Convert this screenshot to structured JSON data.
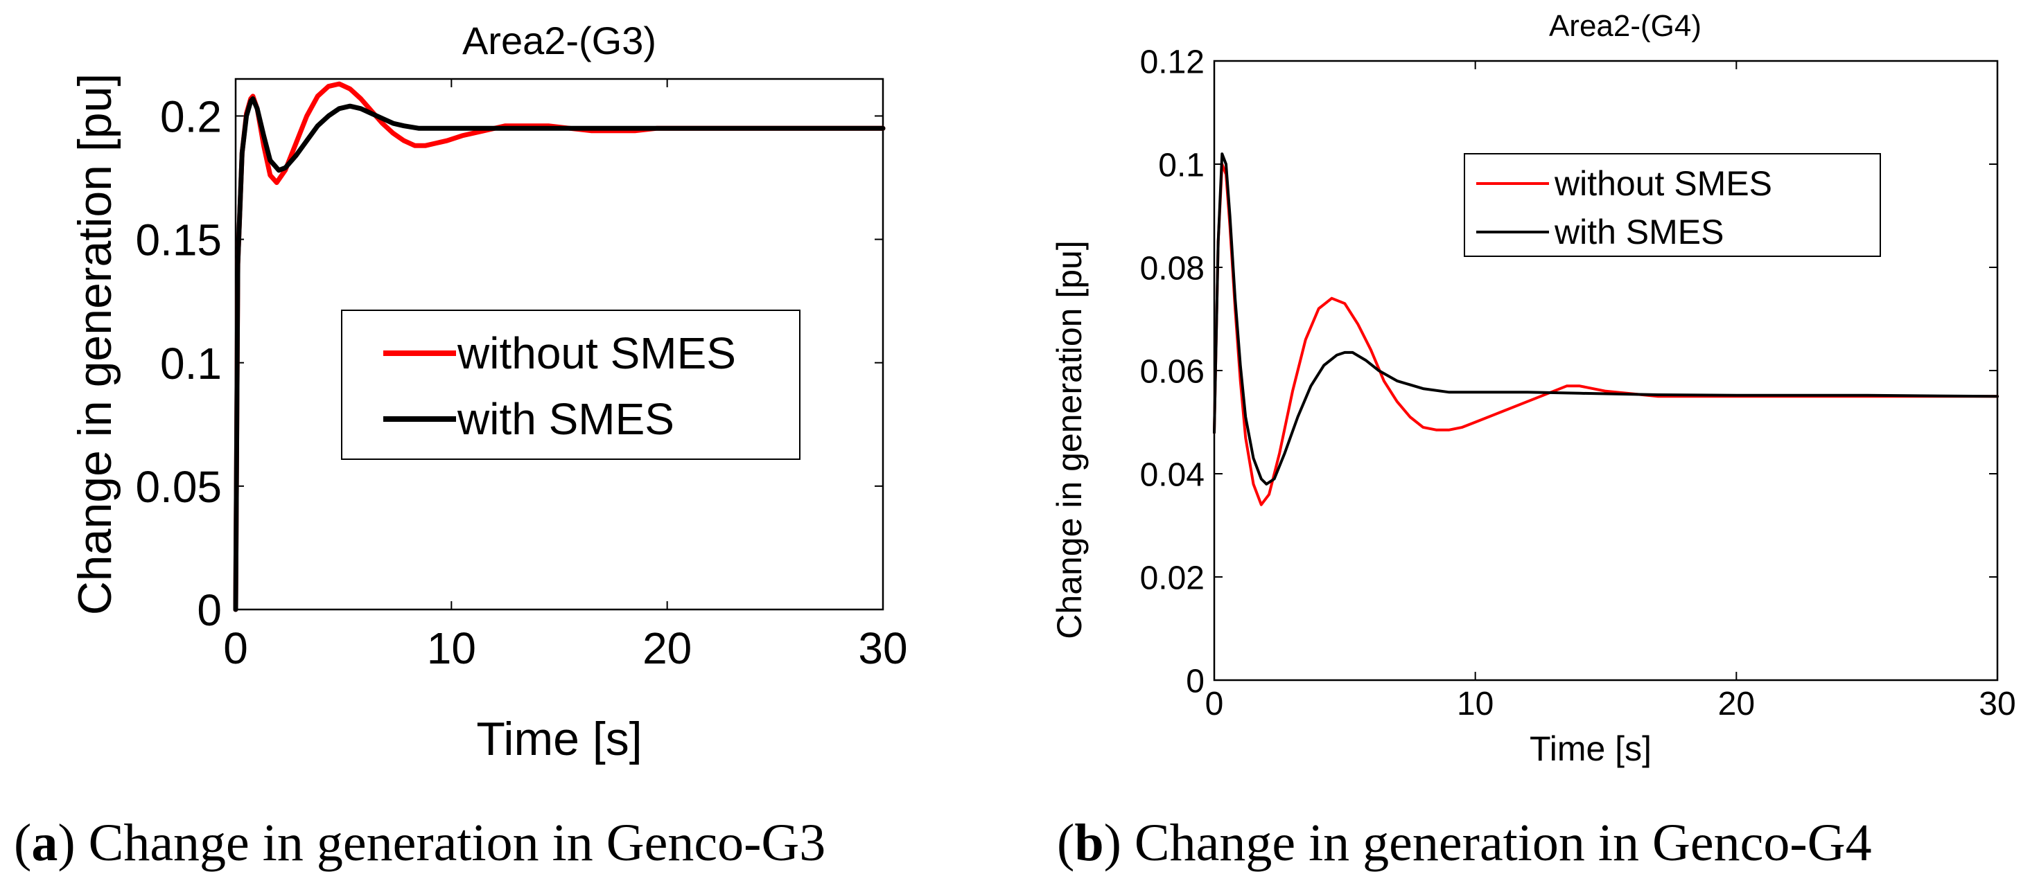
{
  "chart_data": [
    {
      "type": "line",
      "title": "Area2-(G3)",
      "xlabel": "Time [s]",
      "ylabel": "Change in generation [pu]",
      "xlim": [
        0,
        30
      ],
      "ylim": [
        0,
        0.215
      ],
      "xticks": [
        0,
        10,
        20,
        30
      ],
      "xtick_labels": [
        "0",
        "10",
        "20",
        "30"
      ],
      "yticks": [
        0,
        0.05,
        0.1,
        0.15,
        0.2
      ],
      "ytick_labels": [
        "0",
        "0.05",
        "0.1",
        "0.15",
        "0.2"
      ],
      "legend_position": "center",
      "series": [
        {
          "name": "without SMES",
          "color": "#ff0000",
          "x": [
            0,
            0.1,
            0.3,
            0.5,
            0.7,
            0.8,
            1.0,
            1.3,
            1.6,
            1.9,
            2.3,
            2.8,
            3.3,
            3.8,
            4.3,
            4.8,
            5.3,
            5.8,
            6.3,
            6.8,
            7.3,
            7.8,
            8.3,
            8.8,
            9.3,
            9.8,
            10.5,
            11.5,
            12.5,
            13.5,
            14.5,
            15.5,
            16.5,
            17.5,
            18.5,
            19.5,
            21,
            23,
            26,
            30
          ],
          "y": [
            0,
            0.14,
            0.185,
            0.201,
            0.207,
            0.208,
            0.203,
            0.188,
            0.176,
            0.173,
            0.178,
            0.189,
            0.2,
            0.208,
            0.212,
            0.213,
            0.211,
            0.207,
            0.202,
            0.197,
            0.193,
            0.19,
            0.188,
            0.188,
            0.189,
            0.19,
            0.192,
            0.194,
            0.196,
            0.196,
            0.196,
            0.195,
            0.194,
            0.194,
            0.194,
            0.195,
            0.195,
            0.195,
            0.195,
            0.195
          ]
        },
        {
          "name": "with SMES",
          "color": "#000000",
          "x": [
            0,
            0.1,
            0.3,
            0.5,
            0.7,
            0.8,
            1.0,
            1.3,
            1.6,
            2.0,
            2.3,
            2.8,
            3.3,
            3.8,
            4.3,
            4.8,
            5.3,
            5.8,
            6.3,
            6.8,
            7.3,
            7.8,
            8.5,
            9.5,
            10.5,
            11.5,
            12.5,
            14,
            16,
            18,
            20,
            23,
            26,
            30
          ],
          "y": [
            0,
            0.14,
            0.185,
            0.2,
            0.206,
            0.207,
            0.203,
            0.192,
            0.182,
            0.178,
            0.179,
            0.184,
            0.19,
            0.196,
            0.2,
            0.203,
            0.204,
            0.203,
            0.201,
            0.199,
            0.197,
            0.196,
            0.195,
            0.195,
            0.195,
            0.195,
            0.195,
            0.195,
            0.195,
            0.195,
            0.195,
            0.195,
            0.195,
            0.195
          ]
        }
      ]
    },
    {
      "type": "line",
      "title": "Area2-(G4)",
      "xlabel": "Time [s]",
      "ylabel": "Change in generation [pu]",
      "xlim": [
        0,
        30
      ],
      "ylim": [
        0,
        0.12
      ],
      "xticks": [
        0,
        10,
        20,
        30
      ],
      "xtick_labels": [
        "0",
        "10",
        "20",
        "30"
      ],
      "yticks": [
        0,
        0.02,
        0.04,
        0.06,
        0.08,
        0.1,
        0.12
      ],
      "ytick_labels": [
        "0",
        "0.02",
        "0.04",
        "0.06",
        "0.08",
        "0.1",
        "0.12"
      ],
      "legend_position": "top-right",
      "series": [
        {
          "name": "without SMES",
          "color": "#ff0000",
          "x": [
            0,
            0.15,
            0.3,
            0.45,
            0.6,
            0.8,
            1.0,
            1.2,
            1.5,
            1.8,
            2.1,
            2.5,
            3.0,
            3.5,
            4.0,
            4.5,
            5.0,
            5.5,
            6.0,
            6.5,
            7.0,
            7.5,
            8.0,
            8.5,
            9.0,
            9.5,
            10,
            11,
            12,
            13,
            13.5,
            14,
            15,
            16,
            17,
            18,
            20,
            23,
            26,
            30
          ],
          "y": [
            0.048,
            0.085,
            0.1,
            0.098,
            0.088,
            0.072,
            0.058,
            0.047,
            0.038,
            0.034,
            0.036,
            0.044,
            0.056,
            0.066,
            0.072,
            0.074,
            0.073,
            0.069,
            0.064,
            0.058,
            0.054,
            0.051,
            0.049,
            0.0485,
            0.0485,
            0.049,
            0.05,
            0.052,
            0.054,
            0.056,
            0.057,
            0.057,
            0.056,
            0.0555,
            0.055,
            0.055,
            0.055,
            0.055,
            0.055,
            0.055
          ]
        },
        {
          "name": "with SMES",
          "color": "#000000",
          "x": [
            0,
            0.15,
            0.3,
            0.45,
            0.6,
            0.8,
            1.0,
            1.2,
            1.5,
            1.8,
            2.0,
            2.3,
            2.7,
            3.2,
            3.7,
            4.2,
            4.7,
            5.0,
            5.3,
            5.8,
            6.3,
            7,
            8,
            9,
            10,
            12,
            14,
            17,
            20,
            25,
            30
          ],
          "y": [
            0.048,
            0.085,
            0.102,
            0.1,
            0.09,
            0.074,
            0.061,
            0.051,
            0.043,
            0.039,
            0.038,
            0.039,
            0.044,
            0.051,
            0.057,
            0.061,
            0.063,
            0.0635,
            0.0635,
            0.062,
            0.06,
            0.058,
            0.0565,
            0.0558,
            0.0558,
            0.0558,
            0.0556,
            0.0553,
            0.0552,
            0.0552,
            0.055
          ]
        }
      ]
    }
  ],
  "captions": [
    {
      "letter": "a",
      "text": "Change in generation in Genco-G3"
    },
    {
      "letter": "b",
      "text": "Change in generation in Genco-G4"
    }
  ]
}
